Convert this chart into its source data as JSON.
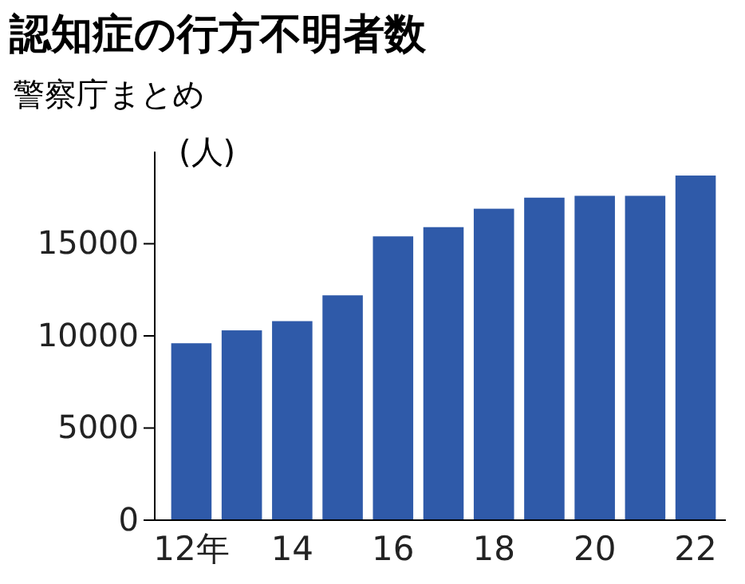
{
  "chart_data": {
    "type": "bar",
    "title": "認知症の行方不明者数",
    "subtitle": "警察庁まとめ",
    "ylabel": "(人)",
    "categories": [
      "12年",
      null,
      "14",
      null,
      "16",
      null,
      "18",
      null,
      "20",
      null,
      "22"
    ],
    "values": [
      9600,
      10300,
      10800,
      12200,
      15400,
      15900,
      16900,
      17500,
      17600,
      17600,
      18700
    ],
    "color": "#2f5aa9",
    "ylim": [
      0,
      20000
    ],
    "yticks": [
      0,
      5000,
      10000,
      15000
    ],
    "grid": false
  }
}
